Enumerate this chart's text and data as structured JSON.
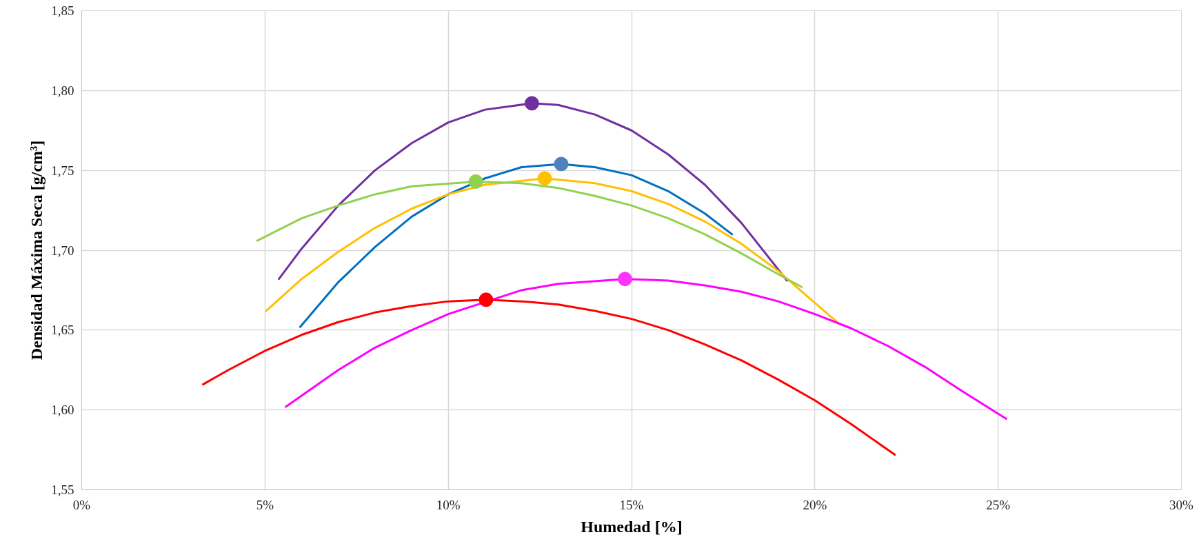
{
  "chart_data": {
    "type": "line",
    "xlabel": "Humedad [%]",
    "ylabel": "Densidad Máxima Seca [g/cm³]",
    "xlim": [
      0,
      30
    ],
    "ylim": [
      1.55,
      1.85
    ],
    "grid": true,
    "xticks": [
      {
        "value": 0,
        "label": "0%"
      },
      {
        "value": 5,
        "label": "5%"
      },
      {
        "value": 10,
        "label": "10%"
      },
      {
        "value": 15,
        "label": "15%"
      },
      {
        "value": 20,
        "label": "20%"
      },
      {
        "value": 25,
        "label": "25%"
      },
      {
        "value": 30,
        "label": "30%"
      }
    ],
    "yticks": [
      {
        "value": 1.55,
        "label": "1,55"
      },
      {
        "value": 1.6,
        "label": "1,60"
      },
      {
        "value": 1.65,
        "label": "1,65"
      },
      {
        "value": 1.7,
        "label": "1,70"
      },
      {
        "value": 1.75,
        "label": "1,75"
      },
      {
        "value": 1.8,
        "label": "1,80"
      },
      {
        "value": 1.85,
        "label": "1,85"
      }
    ],
    "series": [
      {
        "color": "#7030a0",
        "x": [
          5.38,
          6,
          7,
          8,
          9,
          10,
          11,
          12.28,
          13,
          14,
          15,
          16,
          17,
          18,
          19.24
        ],
        "values": [
          1.682,
          1.701,
          1.728,
          1.75,
          1.767,
          1.78,
          1.788,
          1.792,
          1.791,
          1.785,
          1.775,
          1.76,
          1.741,
          1.717,
          1.681
        ]
      },
      {
        "color": "#0070c0",
        "x": [
          5.96,
          7,
          8,
          9,
          10,
          11,
          12,
          13.08,
          14,
          15,
          16,
          17,
          17.74
        ],
        "values": [
          1.652,
          1.68,
          1.702,
          1.721,
          1.735,
          1.745,
          1.752,
          1.754,
          1.752,
          1.747,
          1.737,
          1.723,
          1.71
        ]
      },
      {
        "color": "#ffc000",
        "x": [
          5.03,
          6,
          7,
          8,
          9,
          10,
          11,
          12.63,
          14,
          15,
          16,
          17,
          18,
          19,
          20,
          20.66
        ],
        "values": [
          1.662,
          1.682,
          1.699,
          1.714,
          1.726,
          1.735,
          1.741,
          1.745,
          1.742,
          1.737,
          1.729,
          1.718,
          1.704,
          1.687,
          1.667,
          1.654
        ]
      },
      {
        "color": "#92d050",
        "x": [
          4.79,
          6,
          7,
          8,
          9,
          10.75,
          12,
          13,
          14,
          15,
          16,
          17,
          18,
          19,
          19.64
        ],
        "values": [
          1.706,
          1.72,
          1.728,
          1.735,
          1.74,
          1.743,
          1.742,
          1.739,
          1.734,
          1.728,
          1.72,
          1.71,
          1.698,
          1.685,
          1.677
        ]
      },
      {
        "color": "#ff00ff",
        "x": [
          5.57,
          7,
          8,
          9,
          10,
          12,
          13,
          14.82,
          16,
          17,
          18,
          19,
          20,
          21,
          22,
          23,
          24,
          25.22
        ],
        "values": [
          1.602,
          1.625,
          1.639,
          1.65,
          1.66,
          1.675,
          1.679,
          1.682,
          1.681,
          1.678,
          1.674,
          1.668,
          1.66,
          1.651,
          1.64,
          1.627,
          1.612,
          1.5945
        ]
      },
      {
        "color": "#ff0000",
        "x": [
          3.31,
          4,
          5,
          6,
          7,
          8,
          9,
          10,
          11.03,
          12,
          13,
          14,
          15,
          16,
          17,
          18,
          19,
          20,
          21,
          22.18
        ],
        "values": [
          1.616,
          1.625,
          1.637,
          1.647,
          1.655,
          1.661,
          1.665,
          1.668,
          1.669,
          1.668,
          1.666,
          1.662,
          1.657,
          1.65,
          1.641,
          1.631,
          1.619,
          1.606,
          1.591,
          1.572
        ]
      },
      {
        "type": "scatter",
        "marker": "circle",
        "color": "#7030a0",
        "x": [
          12.28
        ],
        "values": [
          1.792
        ]
      },
      {
        "type": "scatter",
        "marker": "circle",
        "color": "#4f81bd",
        "x": [
          13.08
        ],
        "values": [
          1.754
        ]
      },
      {
        "type": "scatter",
        "marker": "circle",
        "color": "#ffc000",
        "x": [
          12.63
        ],
        "values": [
          1.745
        ]
      },
      {
        "type": "scatter",
        "marker": "circle",
        "color": "#92d050",
        "x": [
          10.75
        ],
        "values": [
          1.743
        ]
      },
      {
        "type": "scatter",
        "marker": "circle",
        "color": "#ff33ff",
        "x": [
          14.82
        ],
        "values": [
          1.682
        ]
      },
      {
        "type": "scatter",
        "marker": "circle",
        "color": "#ff0000",
        "x": [
          11.03
        ],
        "values": [
          1.669
        ]
      }
    ]
  }
}
